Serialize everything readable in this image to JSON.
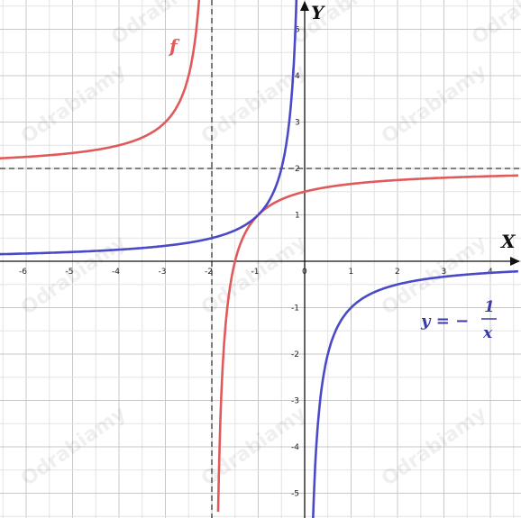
{
  "chart_data": {
    "type": "line",
    "title": "",
    "xlabel": "X",
    "ylabel": "Y",
    "xlim": [
      -6.6,
      4.6
    ],
    "ylim": [
      -5.6,
      5.6
    ],
    "grid": true,
    "x_ticks": [
      -6,
      -5,
      -4,
      -3,
      -2,
      -1,
      0,
      1,
      2,
      3,
      4
    ],
    "y_ticks": [
      -5,
      -4,
      -3,
      -2,
      -1,
      1,
      2,
      3,
      4,
      5
    ],
    "asymptotes": {
      "vertical_x": -2,
      "horizontal_y": 2
    },
    "series": [
      {
        "name": "f",
        "color": "#e05a5a",
        "points": [
          [
            -6.6,
            2.22
          ],
          [
            -5,
            2.33
          ],
          [
            -4,
            2.5
          ],
          [
            -3,
            3
          ],
          [
            -2.5,
            4
          ],
          [
            -2.3,
            5.33
          ],
          [
            -1.8,
            -3
          ],
          [
            -1.5,
            0
          ],
          [
            -1,
            1
          ],
          [
            0,
            1.5
          ],
          [
            1,
            1.67
          ],
          [
            2,
            1.75
          ],
          [
            4,
            1.83
          ],
          [
            4.6,
            1.85
          ]
        ]
      },
      {
        "name": "y = -1/x",
        "color": "#4a4ac8",
        "points": [
          [
            -6.6,
            0.15
          ],
          [
            -5,
            0.2
          ],
          [
            -4,
            0.25
          ],
          [
            -3,
            0.33
          ],
          [
            -2,
            0.5
          ],
          [
            -1,
            1
          ],
          [
            -0.5,
            2
          ],
          [
            -0.25,
            4
          ],
          [
            0.25,
            -4
          ],
          [
            0.5,
            -2
          ],
          [
            1,
            -1
          ],
          [
            2,
            -0.5
          ],
          [
            3,
            -0.33
          ],
          [
            4,
            -0.25
          ],
          [
            4.6,
            -0.22
          ]
        ]
      }
    ],
    "annotations": {
      "f_label": "f",
      "eq_lhs": "y = −",
      "eq_num": "1",
      "eq_den": "x"
    }
  },
  "watermark_text": "Odrabiamy"
}
